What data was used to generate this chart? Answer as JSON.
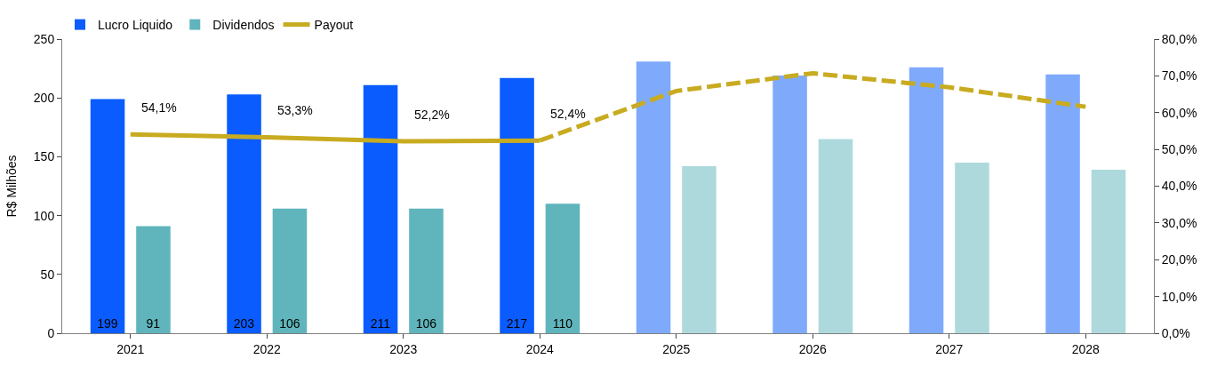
{
  "chart_data": {
    "type": "bar",
    "categories": [
      "2021",
      "2022",
      "2023",
      "2024",
      "2025",
      "2026",
      "2027",
      "2028"
    ],
    "ylabel": "R$ Milhões",
    "series": [
      {
        "name": "Lucro Liquido",
        "colors": [
          "#0a5cff",
          "#0a5cff",
          "#0a5cff",
          "#0a5cff",
          "#7faafc",
          "#7faafc",
          "#7faafc",
          "#7faafc"
        ],
        "values": [
          199,
          203,
          211,
          217,
          231,
          219,
          226,
          220
        ],
        "value_labels": [
          "199",
          "203",
          "211",
          "217",
          null,
          null,
          null,
          null
        ]
      },
      {
        "name": "Dividendos",
        "colors": [
          "#5fb5bb",
          "#5fb5bb",
          "#5fb5bb",
          "#5fb5bb",
          "#aed9dc",
          "#aed9dc",
          "#aed9dc",
          "#aed9dc"
        ],
        "values": [
          91,
          106,
          106,
          110,
          142,
          165,
          145,
          139
        ],
        "value_labels": [
          "91",
          "106",
          "106",
          "110",
          null,
          null,
          null,
          null
        ]
      },
      {
        "name": "Payout",
        "type": "line",
        "axis": "y2",
        "color": "#c8ab20",
        "line_style": "solid",
        "values": [
          54.1,
          53.3,
          52.2,
          52.4,
          null,
          null,
          null,
          null
        ],
        "value_labels": [
          "54,1%",
          "53,3%",
          "52,2%",
          "52,4%",
          null,
          null,
          null,
          null
        ]
      },
      {
        "type": "line",
        "axis": "y2",
        "color": "#c8ab20",
        "line_style": "dashed",
        "values": [
          null,
          null,
          null,
          52.4,
          65.9,
          70.7,
          66.9,
          61.6
        ]
      }
    ],
    "ylim": [
      0,
      250
    ],
    "yticks": [
      0,
      50,
      100,
      150,
      200,
      250
    ],
    "y2lim": [
      0,
      80
    ],
    "y2ticks": [
      {
        "value": 0,
        "label": "0,0%"
      },
      {
        "value": 10,
        "label": "10,0%"
      },
      {
        "value": 20,
        "label": "20,0%"
      },
      {
        "value": 30,
        "label": "30,0%"
      },
      {
        "value": 40,
        "label": "40,0%"
      },
      {
        "value": 50,
        "label": "50,0%"
      },
      {
        "value": 60,
        "label": "60,0%"
      },
      {
        "value": 70,
        "label": "70,0%"
      },
      {
        "value": 80,
        "label": "80,0%"
      }
    ],
    "legend": "top left"
  }
}
